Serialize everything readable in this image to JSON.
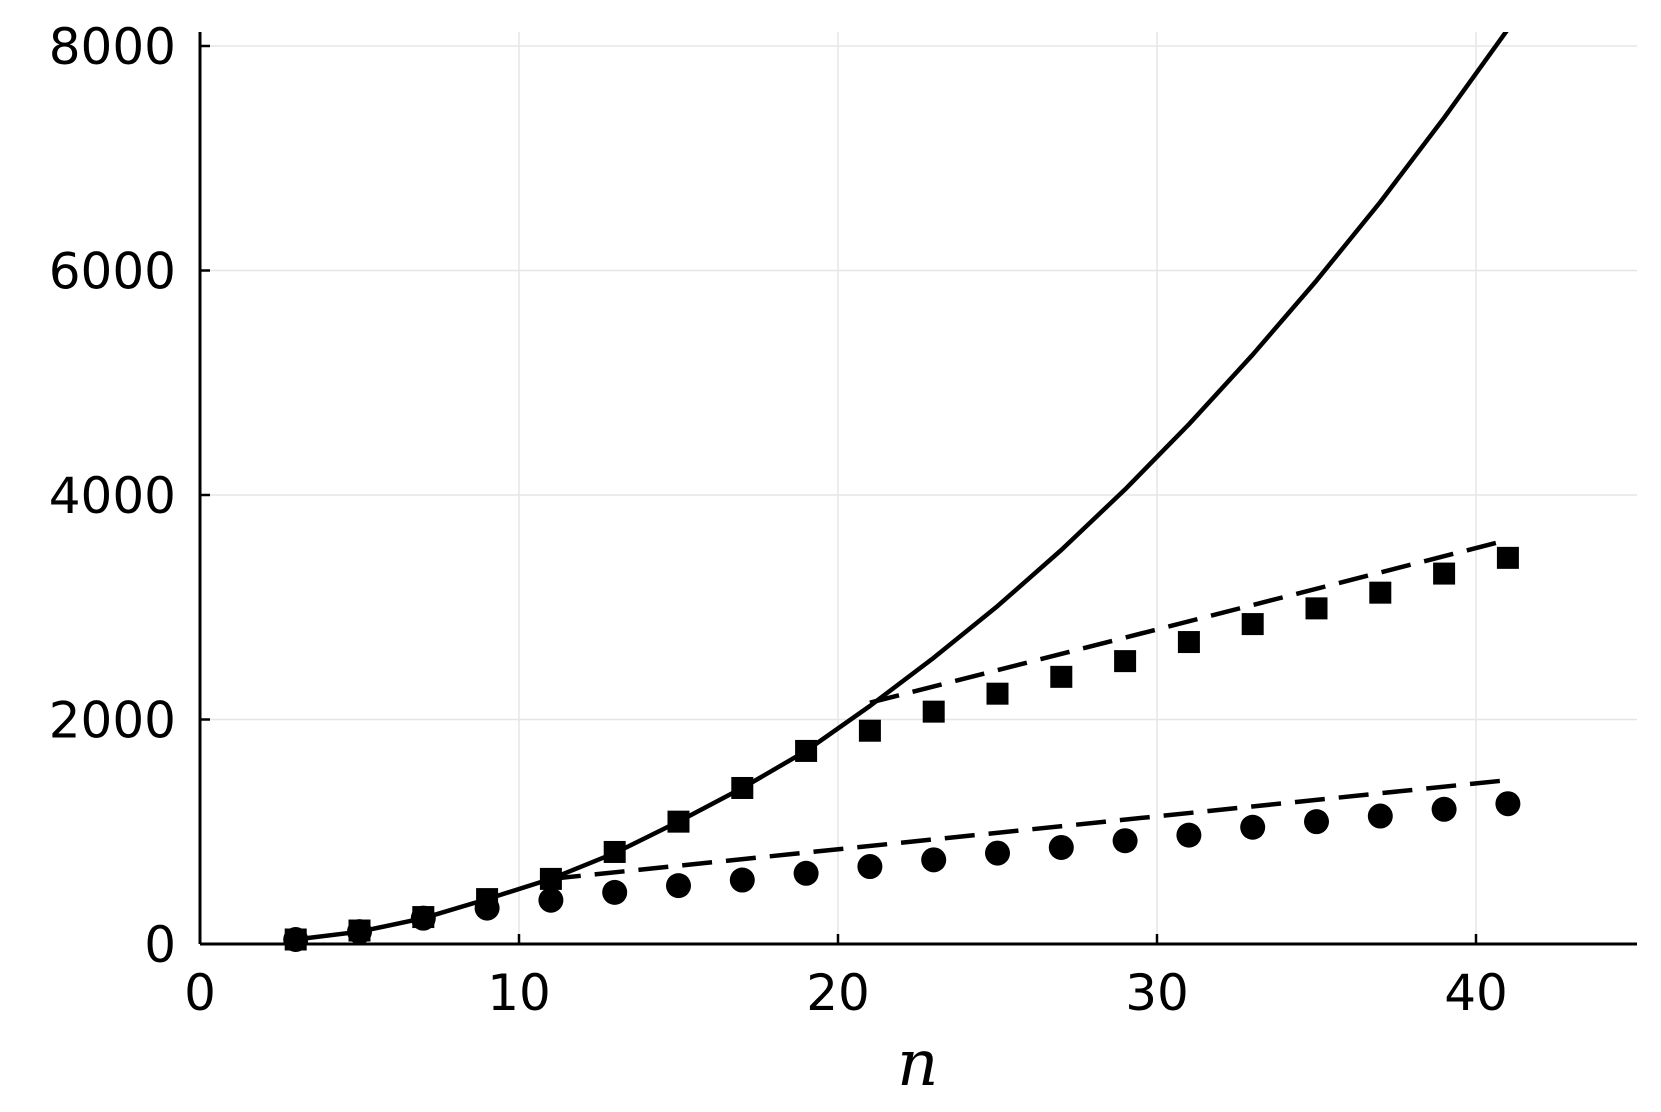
{
  "chart_data": {
    "type": "line",
    "title": "",
    "xlabel": "n",
    "ylabel": "",
    "xlim": [
      0,
      45
    ],
    "ylim": [
      0,
      8000
    ],
    "x_ticks": [
      0,
      10,
      20,
      30,
      40
    ],
    "x_tick_labels": [
      "0",
      "10",
      "20",
      "30",
      "40"
    ],
    "y_ticks": [
      0,
      2000,
      4000,
      6000,
      8000
    ],
    "y_tick_labels": [
      "0",
      "2000",
      "4000",
      "6000",
      "8000"
    ],
    "grid": true,
    "legend": "none",
    "colors": {
      "ink": "#000000",
      "grid": "#e6e6e6",
      "background": "#ffffff"
    },
    "series": [
      {
        "style": "solid-line",
        "x": [
          3,
          5,
          7,
          9,
          11,
          13,
          15,
          17,
          19,
          21,
          23,
          25,
          27,
          29,
          31,
          33,
          35,
          37,
          39,
          41
        ],
        "y": [
          40,
          110,
          230,
          400,
          580,
          810,
          1090,
          1390,
          1720,
          2120,
          2550,
          3010,
          3510,
          4050,
          4630,
          5250,
          5910,
          6610,
          7360,
          8150
        ]
      },
      {
        "style": "dashed-line",
        "x": [
          21,
          41
        ],
        "y": [
          2150,
          3600
        ]
      },
      {
        "style": "dashed-line",
        "x": [
          11,
          41
        ],
        "y": [
          580,
          1460
        ]
      },
      {
        "style": "square-markers",
        "x": [
          3,
          5,
          7,
          9,
          11,
          13,
          15,
          17,
          19,
          21,
          23,
          25,
          27,
          29,
          31,
          33,
          35,
          37,
          39,
          41
        ],
        "y": [
          40,
          120,
          240,
          400,
          580,
          820,
          1090,
          1390,
          1720,
          1900,
          2070,
          2230,
          2380,
          2520,
          2690,
          2850,
          2990,
          3130,
          3300,
          3440
        ]
      },
      {
        "style": "circle-markers",
        "x": [
          3,
          5,
          7,
          9,
          11,
          13,
          15,
          17,
          19,
          21,
          23,
          25,
          27,
          29,
          31,
          33,
          35,
          37,
          39,
          41
        ],
        "y": [
          40,
          110,
          230,
          320,
          390,
          460,
          520,
          570,
          630,
          690,
          750,
          810,
          860,
          920,
          970,
          1040,
          1090,
          1140,
          1200,
          1250
        ]
      }
    ]
  }
}
